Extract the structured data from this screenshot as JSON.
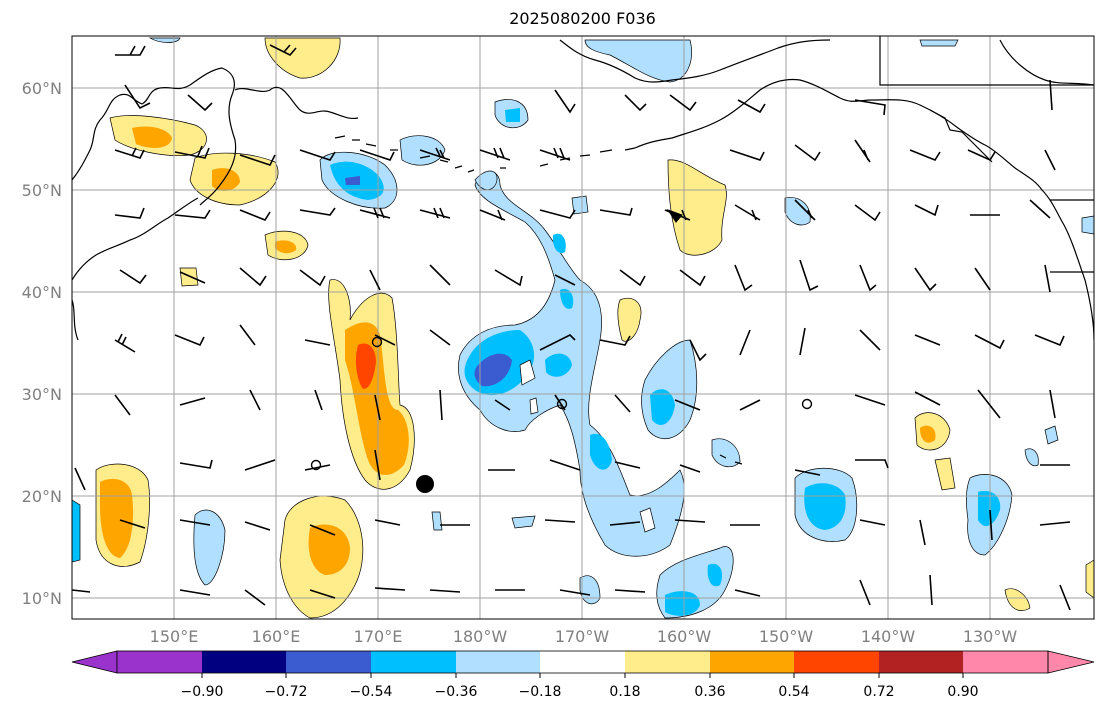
{
  "title": "2025080200 F036",
  "lat_labels": [
    "10°N",
    "20°N",
    "30°N",
    "40°N",
    "50°N",
    "60°N"
  ],
  "lon_labels": [
    "150°E",
    "160°E",
    "170°E",
    "180°W",
    "170°W",
    "160°W",
    "150°W",
    "140°W",
    "130°W"
  ],
  "colorbar": {
    "ticks": [
      "−0.90",
      "−0.72",
      "−0.54",
      "−0.36",
      "−0.18",
      "0.18",
      "0.36",
      "0.54",
      "0.72",
      "0.90"
    ],
    "colors": [
      "#9933cc",
      "#000080",
      "#3b5bd0",
      "#00bfff",
      "#b0dfff",
      "#ffffff",
      "#ffec8b",
      "#ffa500",
      "#ff4500",
      "#b22222",
      "#ff88aa"
    ]
  },
  "fill_colors": {
    "neg_light": "#b0dfff",
    "neg_mid": "#00bfff",
    "neg_strong": "#3b5bd0",
    "pos_light": "#ffec8b",
    "pos_mid": "#ffa500",
    "pos_strong": "#ff4500"
  }
}
